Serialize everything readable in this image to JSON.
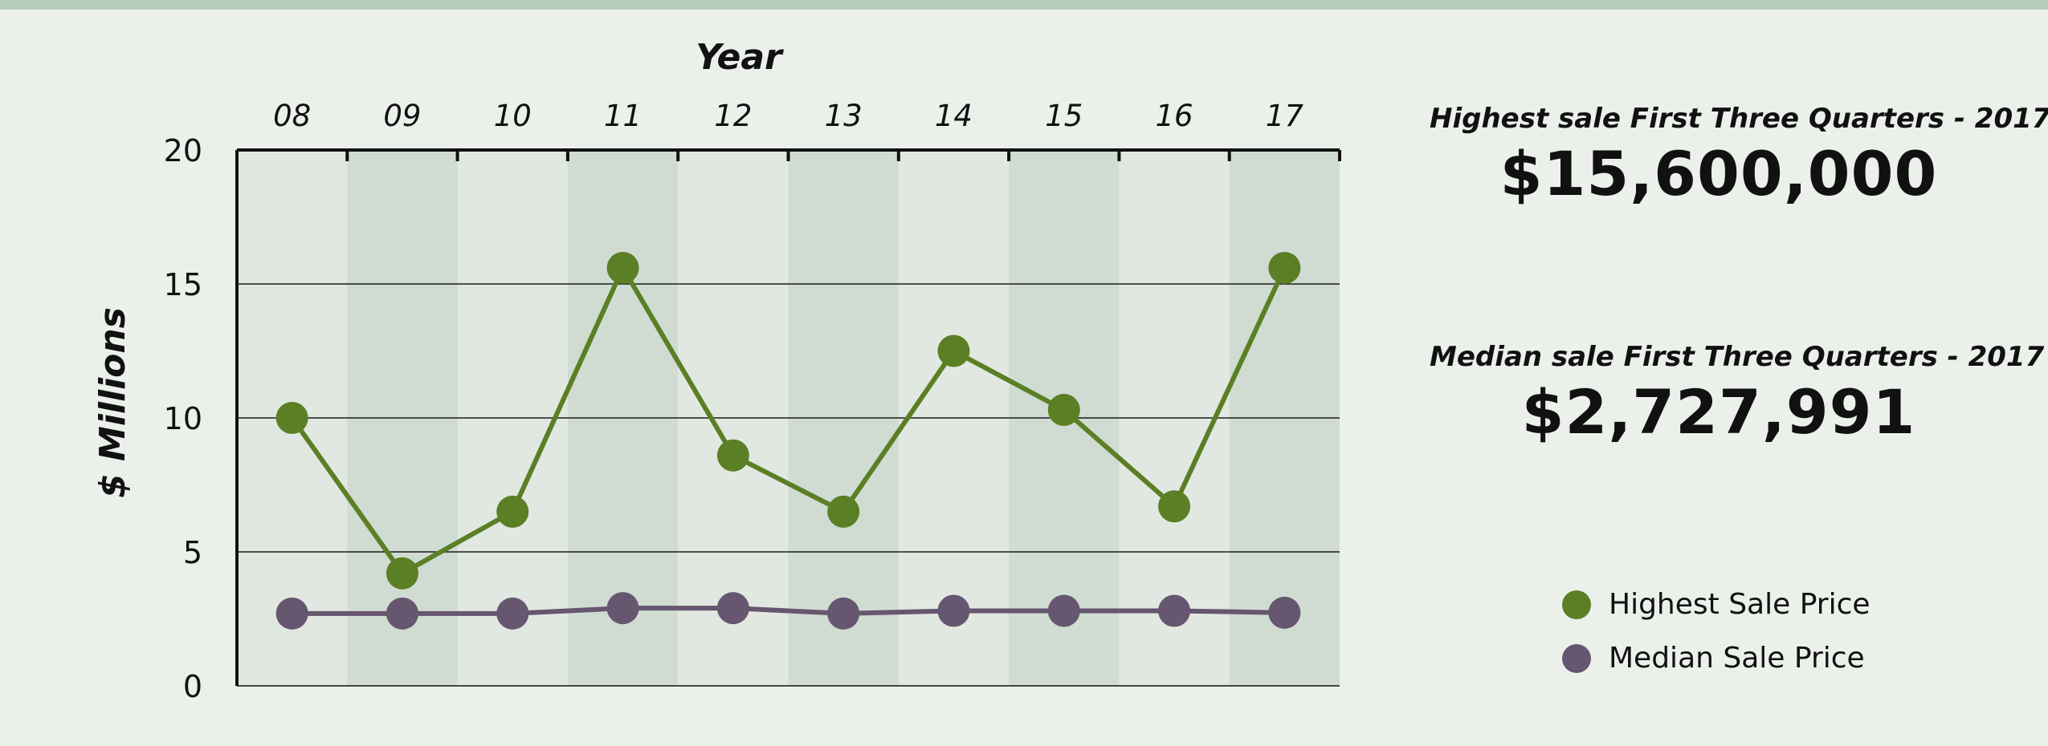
{
  "colors": {
    "highest": "#5b7f24",
    "median": "#67566f",
    "band_light": "#e1e8e1",
    "band_dark": "#d0dcd2"
  },
  "stats": [
    {
      "label": "Highest sale First Three Quarters - 2017",
      "value": "$15,600,000"
    },
    {
      "label": "Median sale First Three Quarters - 2017",
      "value": "$2,727,991"
    }
  ],
  "chart_data": {
    "type": "line",
    "title": "",
    "xlabel": "Year",
    "ylabel": "$ Millions",
    "categories": [
      "08",
      "09",
      "10",
      "11",
      "12",
      "13",
      "14",
      "15",
      "16",
      "17"
    ],
    "yticks": [
      0,
      5,
      10,
      15,
      20
    ],
    "ylim": [
      0,
      20
    ],
    "x_axis_position": "top",
    "grid": true,
    "legend_position": "bottom-right",
    "series": [
      {
        "name": "Highest Sale Price",
        "values": [
          10.0,
          4.2,
          6.5,
          15.6,
          8.6,
          6.5,
          12.5,
          10.3,
          6.7,
          15.6
        ]
      },
      {
        "name": "Median Sale Price",
        "values": [
          2.7,
          2.7,
          2.7,
          2.9,
          2.9,
          2.7,
          2.8,
          2.8,
          2.8,
          2.73
        ]
      }
    ]
  }
}
